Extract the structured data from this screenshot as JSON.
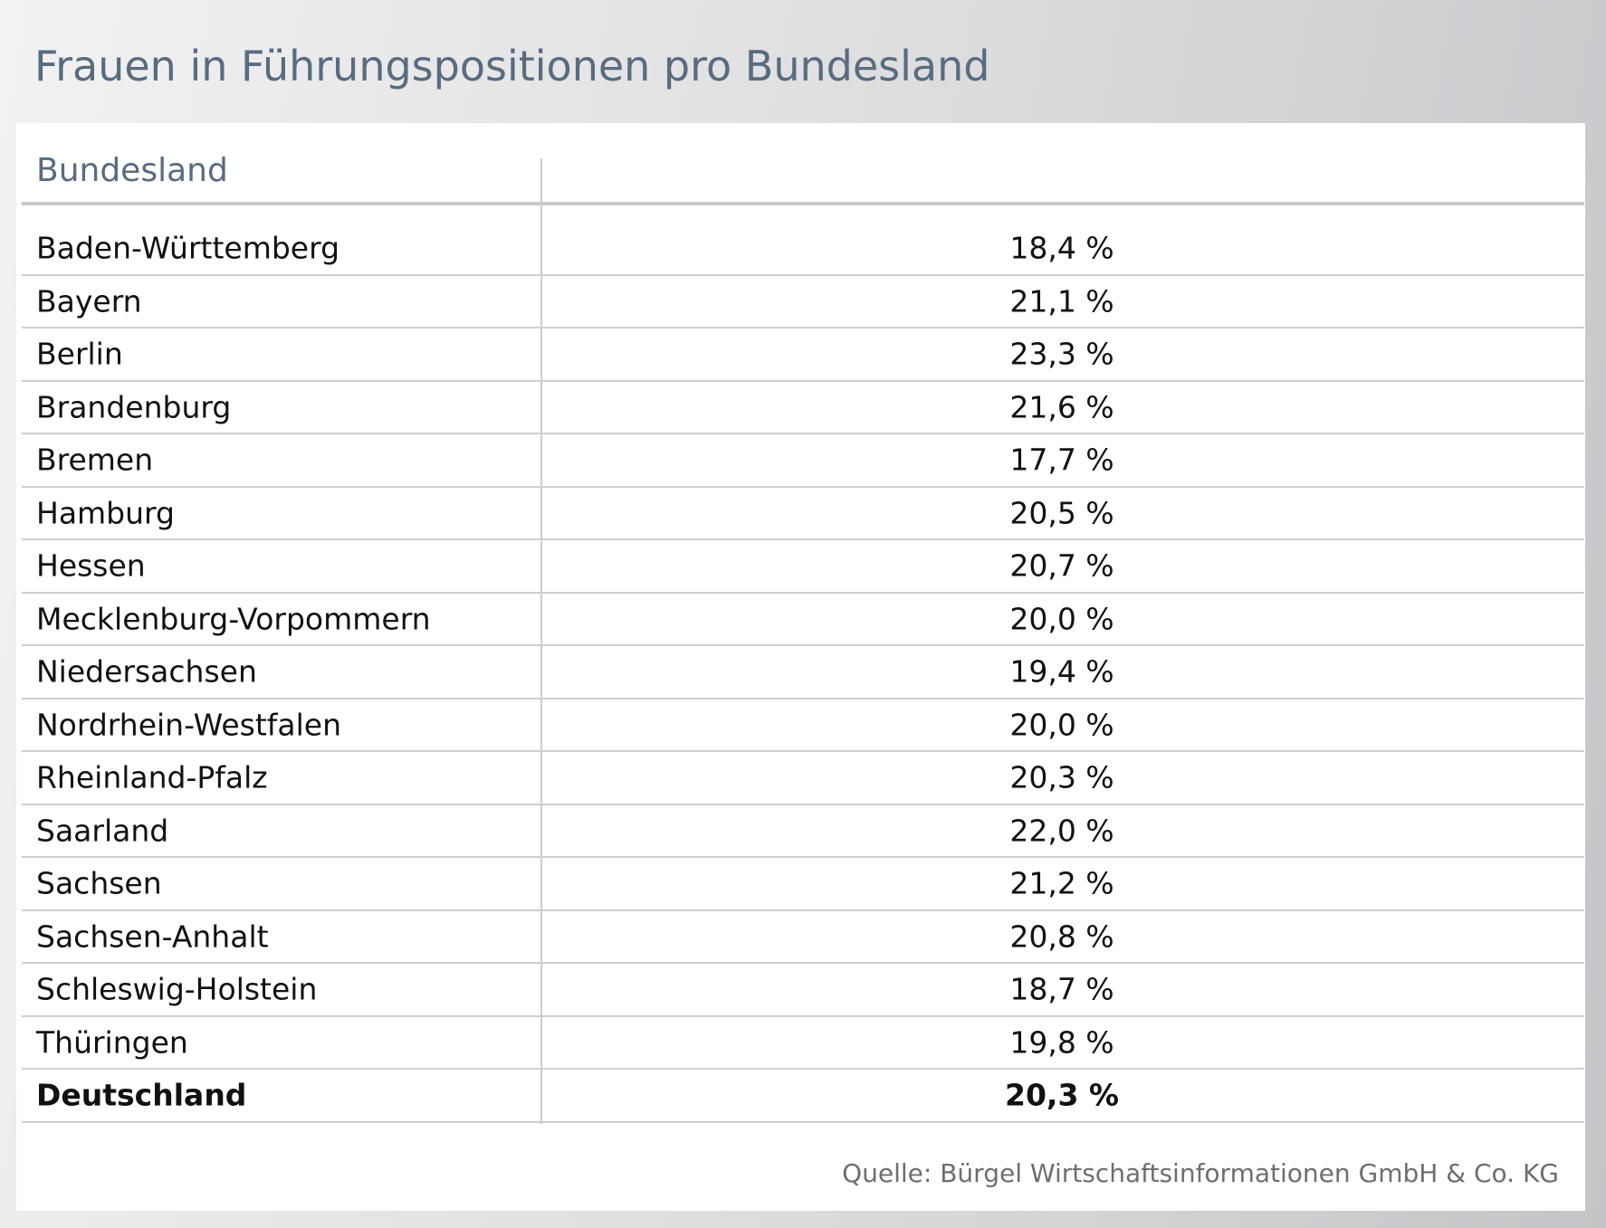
{
  "title": "Frauen in Führungspositionen pro Bundesland",
  "table": {
    "header": [
      "Bundesland"
    ],
    "rows": [
      [
        "Baden-Württemberg",
        "18,4 %"
      ],
      [
        "Bayern",
        "21,1 %"
      ],
      [
        "Berlin",
        "23,3 %"
      ],
      [
        "Brandenburg",
        "21,6 %"
      ],
      [
        "Bremen",
        "17,7 %"
      ],
      [
        "Hamburg",
        "20,5 %"
      ],
      [
        "Hessen",
        "20,7 %"
      ],
      [
        "Mecklenburg-Vorpommern",
        "20,0 %"
      ],
      [
        "Niedersachsen",
        "19,4 %"
      ],
      [
        "Nordrhein-Westfalen",
        "20,0 %"
      ],
      [
        "Rheinland-Pfalz",
        "20,3 %"
      ],
      [
        "Saarland",
        "22,0 %"
      ],
      [
        "Sachsen",
        "21,2 %"
      ],
      [
        "Sachsen-Anhalt",
        "20,8 %"
      ],
      [
        "Schleswig-Holstein",
        "18,7 %"
      ],
      [
        "Thüringen",
        "19,8 %"
      ],
      [
        "Deutschland",
        "20,3 %"
      ]
    ]
  },
  "source": "Quelle: Bürgel Wirtschaftsinformationen GmbH & Co. KG"
}
